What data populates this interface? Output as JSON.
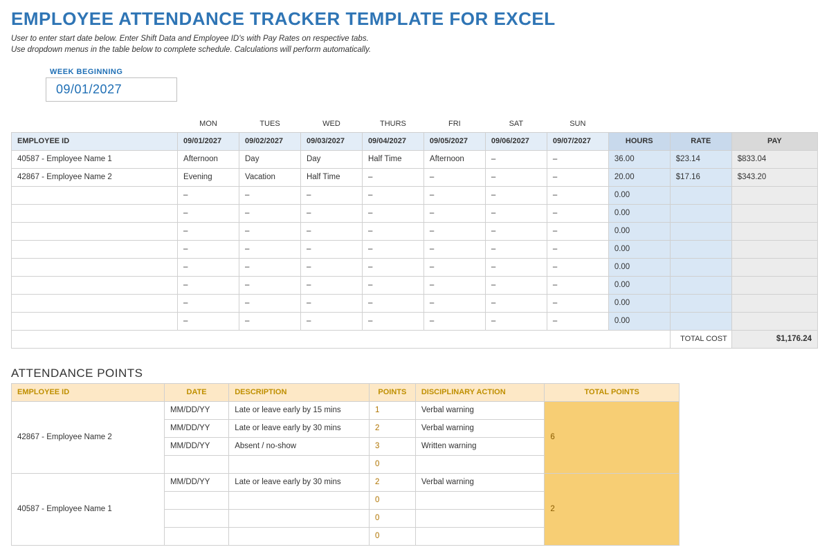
{
  "title": "EMPLOYEE ATTENDANCE TRACKER TEMPLATE FOR EXCEL",
  "subtitle_line1": "User to enter start date below.  Enter Shift Data and Employee ID's with Pay Rates on respective tabs.",
  "subtitle_line2": "Use dropdown menus in the table below to complete schedule. Calculations will perform automatically.",
  "week_label": "WEEK BEGINNING",
  "week_value": "09/01/2027",
  "colors": {
    "accent_blue": "#2f75b5",
    "header_blue_bg": "#e3edf7",
    "sum_header_bg": "#c8d9ec",
    "pay_header_bg": "#d9d9d9",
    "hours_cell_bg": "#d9e7f5",
    "pay_cell_bg": "#ececec",
    "border": "#d0d0d0",
    "points_header_bg": "#fde8c6",
    "points_header_text": "#bf8f00",
    "points_total_bg": "#f7ce74",
    "points_total_text": "#8a5c00"
  },
  "schedule": {
    "day_labels": [
      "MON",
      "TUES",
      "WED",
      "THURS",
      "FRI",
      "SAT",
      "SUN"
    ],
    "date_headers": [
      "09/01/2027",
      "09/02/2027",
      "09/03/2027",
      "09/04/2027",
      "09/05/2027",
      "09/06/2027",
      "09/07/2027"
    ],
    "col_employee": "EMPLOYEE ID",
    "col_hours": "HOURS",
    "col_rate": "RATE",
    "col_pay": "PAY",
    "rows": [
      {
        "employee": "40587 - Employee Name 1",
        "days": [
          "Afternoon",
          "Day",
          "Day",
          "Half Time",
          "Afternoon",
          "–",
          "–"
        ],
        "hours": "36.00",
        "rate": "$23.14",
        "pay": "$833.04"
      },
      {
        "employee": "42867 - Employee Name 2",
        "days": [
          "Evening",
          "Vacation",
          "Half Time",
          "–",
          "–",
          "–",
          "–"
        ],
        "hours": "20.00",
        "rate": "$17.16",
        "pay": "$343.20"
      },
      {
        "employee": "",
        "days": [
          "–",
          "–",
          "–",
          "–",
          "–",
          "–",
          "–"
        ],
        "hours": "0.00",
        "rate": "",
        "pay": ""
      },
      {
        "employee": "",
        "days": [
          "–",
          "–",
          "–",
          "–",
          "–",
          "–",
          "–"
        ],
        "hours": "0.00",
        "rate": "",
        "pay": ""
      },
      {
        "employee": "",
        "days": [
          "–",
          "–",
          "–",
          "–",
          "–",
          "–",
          "–"
        ],
        "hours": "0.00",
        "rate": "",
        "pay": ""
      },
      {
        "employee": "",
        "days": [
          "–",
          "–",
          "–",
          "–",
          "–",
          "–",
          "–"
        ],
        "hours": "0.00",
        "rate": "",
        "pay": ""
      },
      {
        "employee": "",
        "days": [
          "–",
          "–",
          "–",
          "–",
          "–",
          "–",
          "–"
        ],
        "hours": "0.00",
        "rate": "",
        "pay": ""
      },
      {
        "employee": "",
        "days": [
          "–",
          "–",
          "–",
          "–",
          "–",
          "–",
          "–"
        ],
        "hours": "0.00",
        "rate": "",
        "pay": ""
      },
      {
        "employee": "",
        "days": [
          "–",
          "–",
          "–",
          "–",
          "–",
          "–",
          "–"
        ],
        "hours": "0.00",
        "rate": "",
        "pay": ""
      },
      {
        "employee": "",
        "days": [
          "–",
          "–",
          "–",
          "–",
          "–",
          "–",
          "–"
        ],
        "hours": "0.00",
        "rate": "",
        "pay": ""
      }
    ],
    "total_label": "TOTAL COST",
    "total_value": "$1,176.24"
  },
  "points": {
    "section_title": "ATTENDANCE POINTS",
    "col_employee": "EMPLOYEE ID",
    "col_date": "DATE",
    "col_description": "DESCRIPTION",
    "col_points": "POINTS",
    "col_action": "DISCIPLINARY ACTION",
    "col_total": "TOTAL POINTS",
    "groups": [
      {
        "employee": "42867 - Employee Name 2",
        "total": "6",
        "entries": [
          {
            "date": "MM/DD/YY",
            "desc": "Late or leave early by 15 mins",
            "pts": "1",
            "action": "Verbal warning"
          },
          {
            "date": "MM/DD/YY",
            "desc": "Late or leave early by 30 mins",
            "pts": "2",
            "action": "Verbal warning"
          },
          {
            "date": "MM/DD/YY",
            "desc": "Absent / no-show",
            "pts": "3",
            "action": "Written warning"
          },
          {
            "date": "",
            "desc": "",
            "pts": "0",
            "action": ""
          }
        ]
      },
      {
        "employee": "40587 - Employee Name 1",
        "total": "2",
        "entries": [
          {
            "date": "MM/DD/YY",
            "desc": "Late or leave early by 30 mins",
            "pts": "2",
            "action": "Verbal warning"
          },
          {
            "date": "",
            "desc": "",
            "pts": "0",
            "action": ""
          },
          {
            "date": "",
            "desc": "",
            "pts": "0",
            "action": ""
          },
          {
            "date": "",
            "desc": "",
            "pts": "0",
            "action": ""
          }
        ]
      }
    ]
  }
}
